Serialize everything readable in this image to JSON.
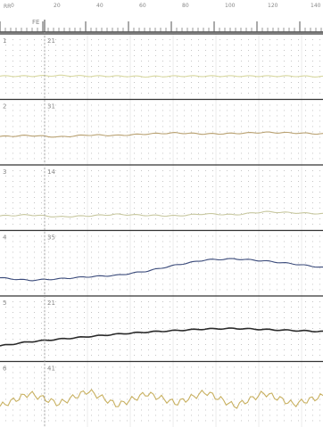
{
  "ruler": {
    "top_label": "RR",
    "start_label": "FE",
    "ticks": [
      "0",
      "20",
      "40",
      "60",
      "80",
      "100",
      "120",
      "140"
    ]
  },
  "channels": [
    {
      "number": "1",
      "label": "21",
      "line": "#d8d8a0",
      "values": [
        0.35,
        0.35,
        0.36,
        0.35,
        0.35,
        0.34,
        0.35,
        0.35,
        0.35,
        0.35,
        0.35,
        0.34
      ]
    },
    {
      "number": "2",
      "label": "31",
      "line": "#b8a070",
      "values": [
        0.45,
        0.47,
        0.44,
        0.48,
        0.47,
        0.5,
        0.52,
        0.5,
        0.51,
        0.53,
        0.52,
        0.5
      ]
    },
    {
      "number": "3",
      "label": "14",
      "line": "#c8c8a0",
      "values": [
        0.18,
        0.2,
        0.16,
        0.18,
        0.21,
        0.19,
        0.18,
        0.22,
        0.2,
        0.26,
        0.24,
        0.22
      ]
    },
    {
      "number": "4",
      "label": "35",
      "line": "#3a4a7a",
      "values": [
        0.25,
        0.2,
        0.23,
        0.27,
        0.3,
        0.38,
        0.5,
        0.6,
        0.62,
        0.58,
        0.52,
        0.45
      ]
    },
    {
      "number": "5",
      "label": "21",
      "line": "#2a2a2a",
      "values": [
        0.2,
        0.28,
        0.33,
        0.38,
        0.43,
        0.47,
        0.5,
        0.53,
        0.54,
        0.52,
        0.5,
        0.48
      ]
    },
    {
      "number": "6",
      "label": "41",
      "line": "#c8b060",
      "values": [
        0.3,
        0.55,
        0.35,
        0.6,
        0.32,
        0.55,
        0.36,
        0.58,
        0.3,
        0.56,
        0.34,
        0.5
      ]
    }
  ]
}
